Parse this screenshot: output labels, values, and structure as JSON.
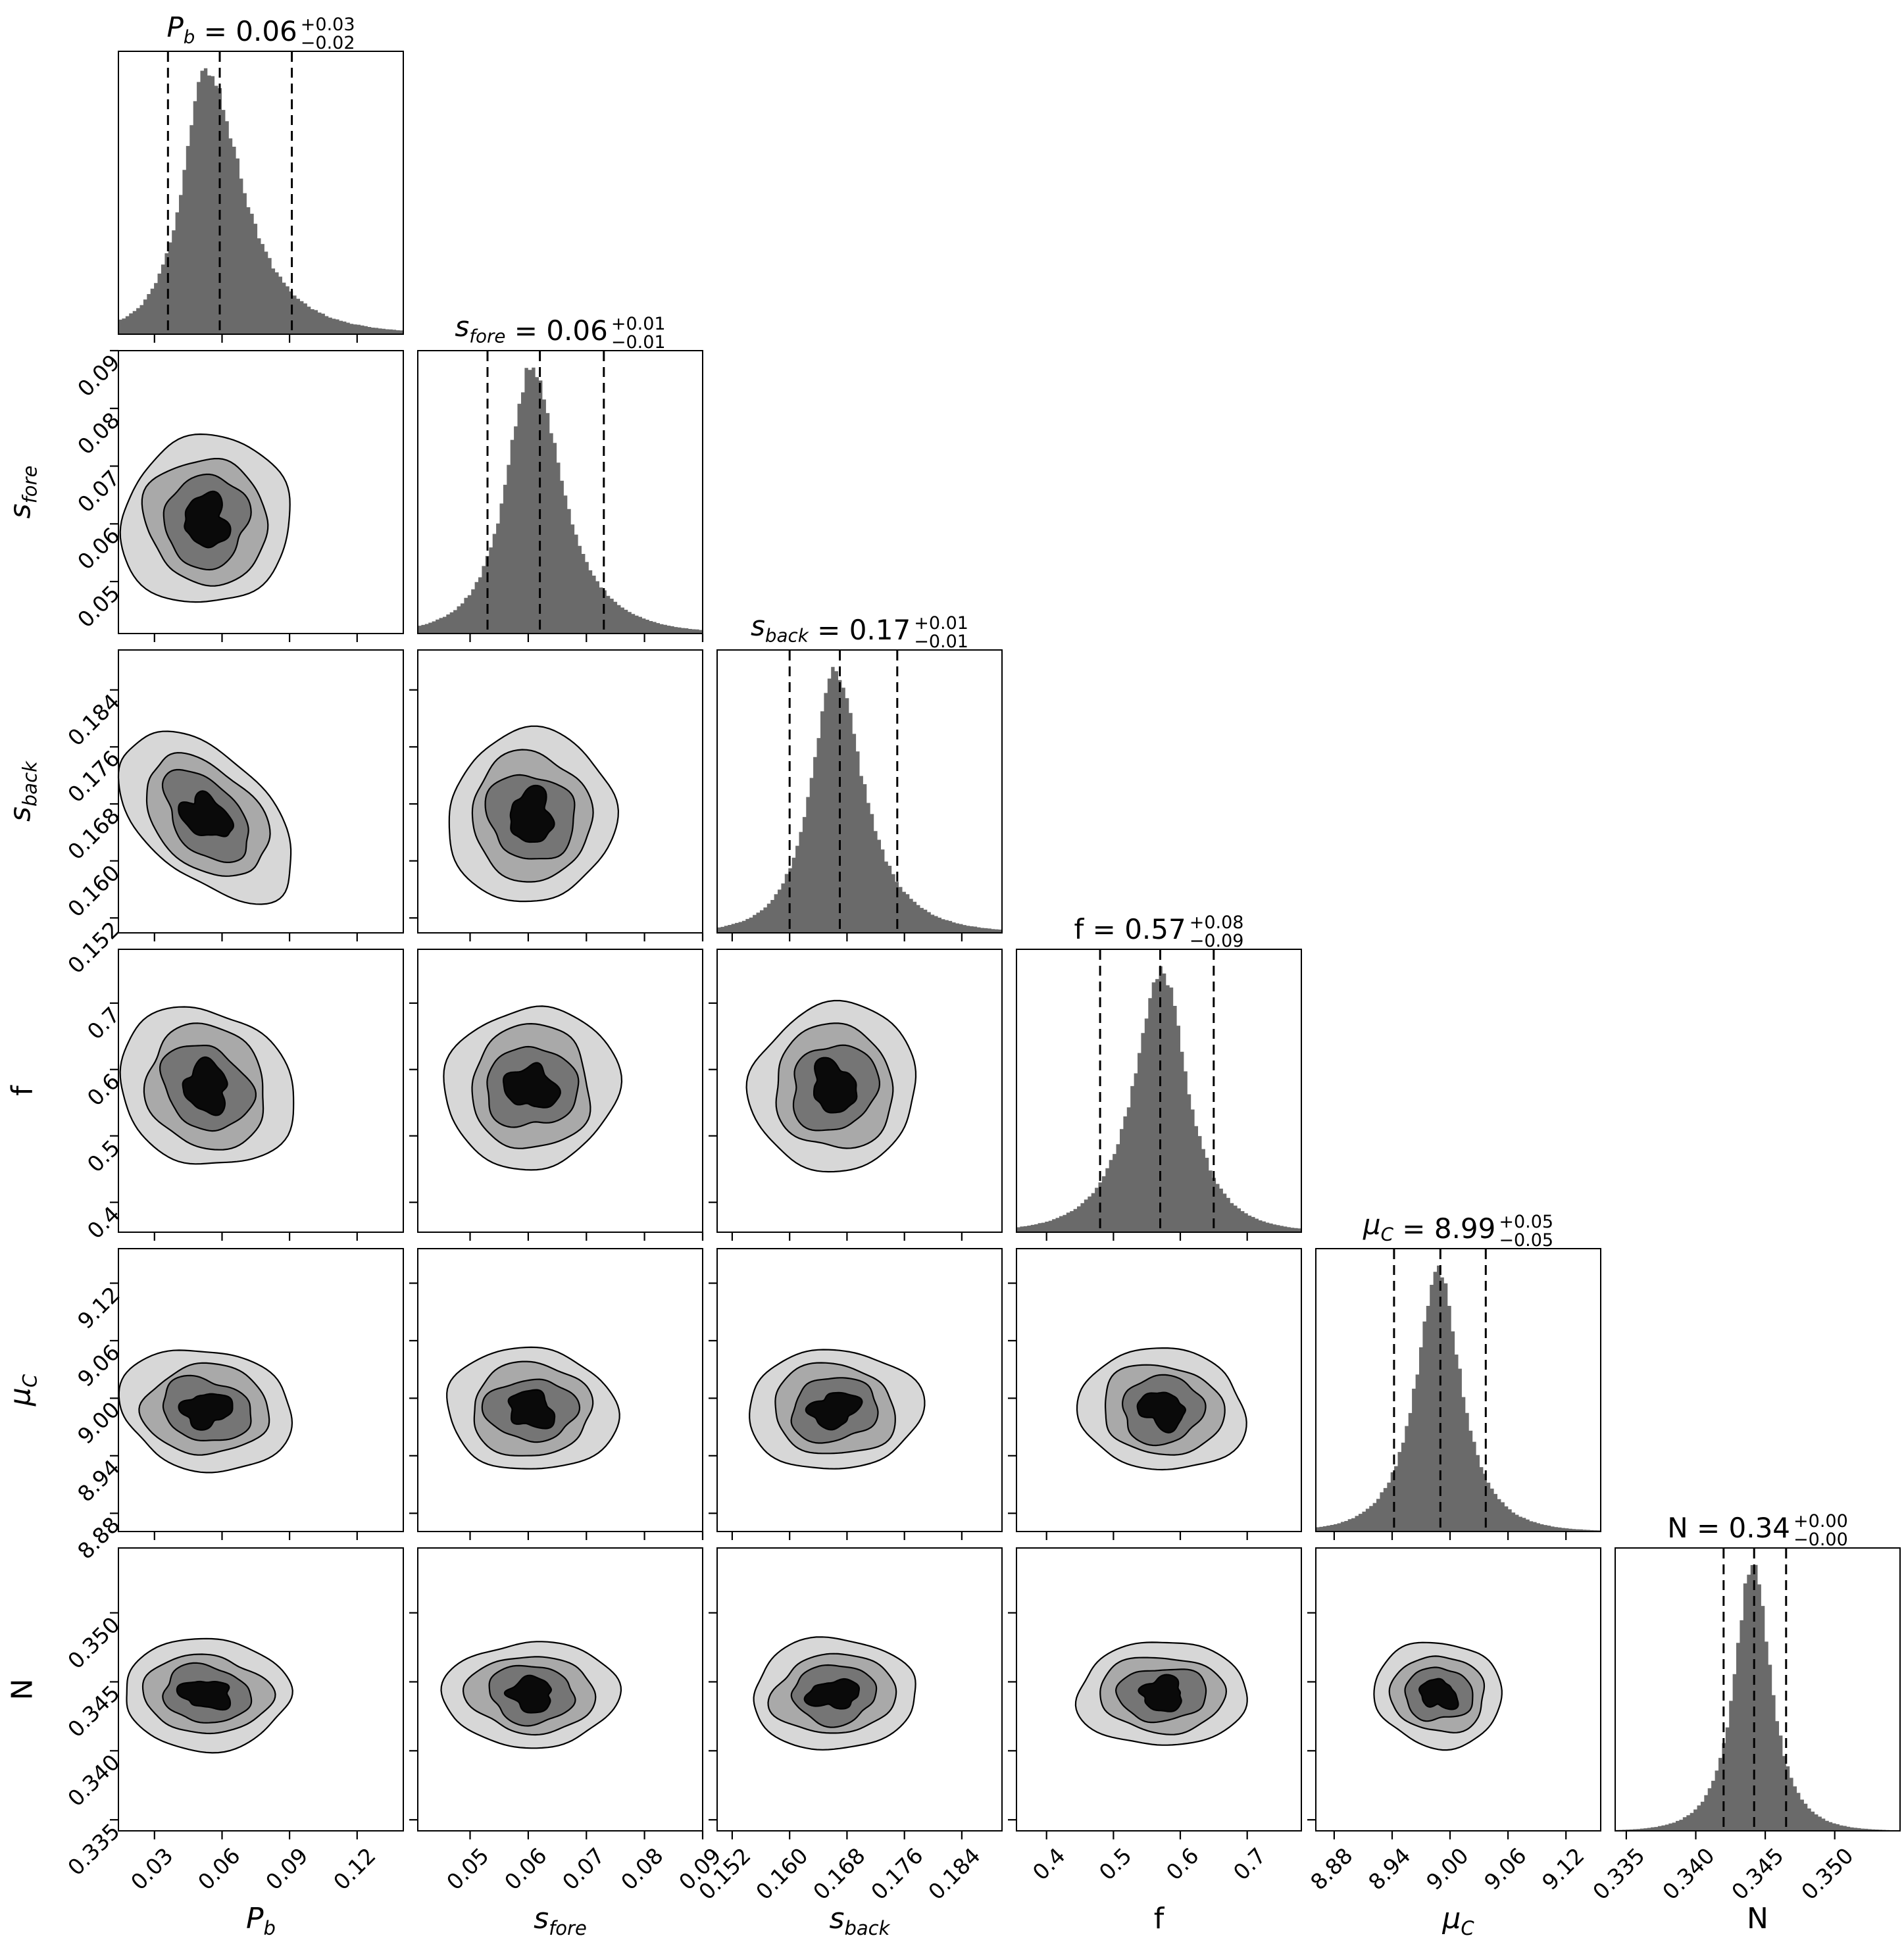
{
  "figure": {
    "kind": "MCMC posterior corner plot (triangle plot)",
    "background": "#ffffff",
    "colors": {
      "hist_fill": "#6a6a6a",
      "contour_fills": [
        "#d7d7d7",
        "#a9a9a9",
        "#757575",
        "#0a0a0a"
      ],
      "line": "#000000"
    }
  },
  "chart_data": {
    "type": "scatter",
    "subtype": "corner-plot",
    "description": "6-parameter posterior distribution: diagonal panels are 1D marginal histograms with dashed 16/50/84 percentile lines and summary titles; lower-triangle panels are 2D filled density contours (4 grayscale levels).",
    "grid": "lower-triangle 6x6",
    "parameters": [
      {
        "name": "P_b",
        "var": "P",
        "sub": "b",
        "italic": true,
        "title": {
          "value": "0.06",
          "plus": "+0.03",
          "minus": "−0.02"
        },
        "range": [
          0.014,
          0.1405
        ],
        "ticks": [
          0.03,
          0.06,
          0.09,
          0.12
        ],
        "tick_labels": [
          "0.03",
          "0.06",
          "0.09",
          "0.12"
        ],
        "quantiles": [
          0.036,
          0.059,
          0.091
        ],
        "mode": 0.053,
        "hs_left": 0.012,
        "hs_right": 0.0185,
        "contour_sigma": 0.0135
      },
      {
        "name": "s_fore",
        "var": "s",
        "sub": "fore",
        "italic": true,
        "title": {
          "value": "0.06",
          "plus": "+0.01",
          "minus": "−0.01"
        },
        "range": [
          0.041,
          0.09
        ],
        "ticks": [
          0.05,
          0.06,
          0.07,
          0.08,
          0.09
        ],
        "tick_labels": [
          "0.05",
          "0.06",
          "0.07",
          "0.08",
          "0.09"
        ],
        "quantiles": [
          0.053,
          0.062,
          0.073
        ],
        "mode": 0.0605,
        "hs_left": 0.005,
        "hs_right": 0.0062,
        "contour_sigma": 0.0052
      },
      {
        "name": "s_back",
        "var": "s",
        "sub": "back",
        "italic": true,
        "title": {
          "value": "0.17",
          "plus": "+0.01",
          "minus": "−0.01"
        },
        "range": [
          0.1499,
          0.1896
        ],
        "ticks": [
          0.152,
          0.16,
          0.168,
          0.176,
          0.184
        ],
        "tick_labels": [
          "0.152",
          "0.160",
          "0.168",
          "0.176",
          "0.184"
        ],
        "quantiles": [
          0.16,
          0.167,
          0.175
        ],
        "mode": 0.1662,
        "hs_left": 0.0038,
        "hs_right": 0.0048,
        "contour_sigma": 0.0042
      },
      {
        "name": "f",
        "var": "f",
        "sub": "",
        "italic": false,
        "title": {
          "value": "0.57",
          "plus": "+0.08",
          "minus": "−0.09"
        },
        "range": [
          0.355,
          0.781
        ],
        "ticks": [
          0.4,
          0.5,
          0.6,
          0.7
        ],
        "tick_labels": [
          "0.4",
          "0.5",
          "0.6",
          "0.7"
        ],
        "quantiles": [
          0.48,
          0.57,
          0.65
        ],
        "mode": 0.573,
        "hs_left": 0.05,
        "hs_right": 0.044,
        "contour_sigma": 0.044
      },
      {
        "name": "mu_C",
        "var": "μ",
        "sub": "C",
        "italic": true,
        "title": {
          "value": "8.99",
          "plus": "+0.05",
          "minus": "−0.05"
        },
        "range": [
          8.861,
          9.156
        ],
        "ticks": [
          8.88,
          8.94,
          9.0,
          9.06,
          9.12
        ],
        "tick_labels": [
          "8.88",
          "8.94",
          "9.00",
          "9.06",
          "9.12"
        ],
        "quantiles": [
          8.942,
          8.99,
          9.037
        ],
        "mode": 8.988,
        "hs_left": 0.0275,
        "hs_right": 0.0275,
        "contour_sigma": 0.023
      },
      {
        "name": "N",
        "var": "N",
        "sub": "",
        "italic": false,
        "title": {
          "value": "0.34",
          "plus": "+0.00",
          "minus": "−0.00"
        },
        "range": [
          0.3342,
          0.3547
        ],
        "ticks": [
          0.335,
          0.34,
          0.345,
          0.35
        ],
        "tick_labels": [
          "0.335",
          "0.340",
          "0.345",
          "0.350"
        ],
        "quantiles": [
          0.342,
          0.3442,
          0.3465
        ],
        "mode": 0.3441,
        "hs_left": 0.0015,
        "hs_right": 0.0015,
        "contour_sigma": 0.0014
      }
    ],
    "correlations": {
      "P_b|s_back": -0.45,
      "P_b|f": -0.12,
      "P_b|mu_C": -0.08
    },
    "contour_levels_sigma": [
      2.8,
      2.05,
      1.45,
      0.78
    ],
    "legend": null,
    "grid_lines": false
  }
}
